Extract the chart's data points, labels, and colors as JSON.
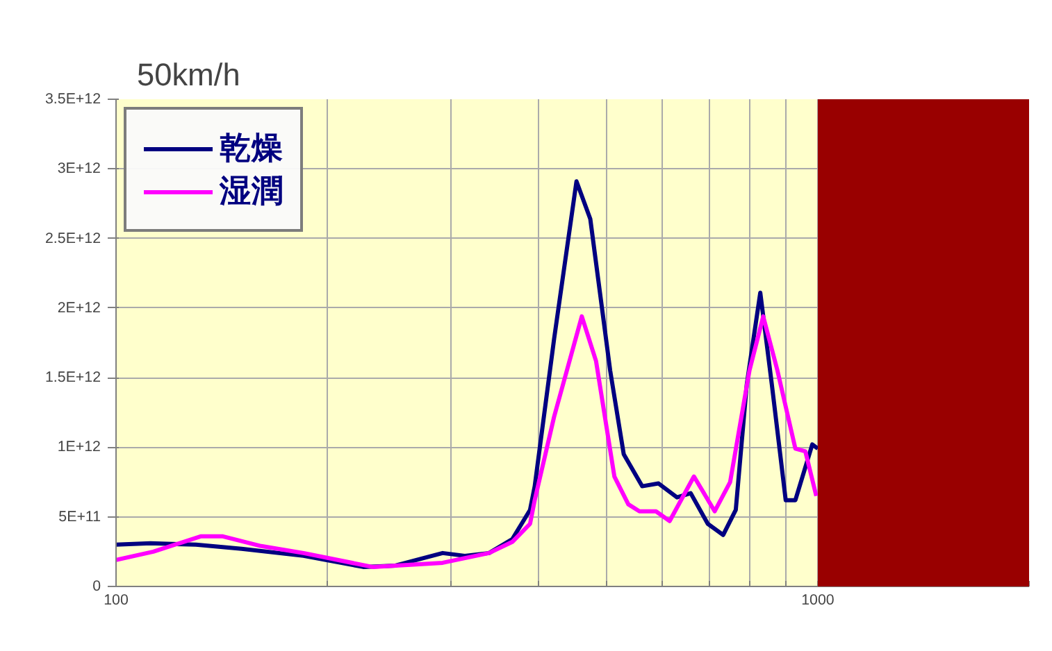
{
  "chart_data": {
    "type": "line",
    "title": "50km/h",
    "log": "x",
    "xlim": [
      100,
      2000
    ],
    "ylim": [
      0,
      3500000000000.0
    ],
    "xticks": [
      100,
      {
        "value": 200,
        "label": null
      },
      {
        "value": 300,
        "label": null
      },
      {
        "value": 400,
        "label": null
      },
      {
        "value": 500,
        "label": null
      },
      {
        "value": 600,
        "label": null
      },
      {
        "value": 700,
        "label": null
      },
      {
        "value": 800,
        "label": null
      },
      {
        "value": 900,
        "label": null
      },
      1000,
      {
        "value": 2000,
        "label": null
      }
    ],
    "yticks": [
      0,
      {
        "value": 500000000000.0,
        "label": "5E+11"
      },
      {
        "value": 1000000000000.0,
        "label": "1E+12"
      },
      {
        "value": 1500000000000.0,
        "label": "1.5E+12"
      },
      {
        "value": 2000000000000.0,
        "label": "2E+12"
      },
      {
        "value": 2500000000000.0,
        "label": "2.5E+12"
      },
      {
        "value": 3000000000000.0,
        "label": "3E+12"
      },
      {
        "value": 3500000000000.0,
        "label": "3.5E+12"
      }
    ],
    "grid": true,
    "legend": "top left",
    "line_style": "solid",
    "marker": "none",
    "bands": [
      {
        "axis": "x",
        "from": 1000,
        "to": 2000,
        "color": "#990000"
      }
    ],
    "series": [
      {
        "name": "乾燥",
        "color": "#000080",
        "x": [
          100,
          112,
          130,
          151,
          185,
          225,
          250,
          292,
          314,
          340,
          367,
          389,
          395,
          421,
          453,
          474,
          506,
          529,
          562,
          593,
          630,
          659,
          697,
          733,
          764,
          792,
          828,
          860,
          900,
          929,
          982,
          1000
        ],
        "values": [
          300000000000.0,
          310000000000.0,
          300000000000.0,
          270000000000.0,
          220000000000.0,
          140000000000.0,
          150000000000.0,
          240000000000.0,
          220000000000.0,
          240000000000.0,
          340000000000.0,
          550000000000.0,
          720000000000.0,
          1780000000000.0,
          2910000000000.0,
          2640000000000.0,
          1550000000000.0,
          950000000000.0,
          720000000000.0,
          740000000000.0,
          640000000000.0,
          670000000000.0,
          450000000000.0,
          370000000000.0,
          550000000000.0,
          1450000000000.0,
          2110000000000.0,
          1450000000000.0,
          620000000000.0,
          620000000000.0,
          1020000000000.0,
          990000000000.0
        ]
      },
      {
        "name": "湿潤",
        "color": "#ff00ff",
        "x": [
          100,
          113,
          132,
          142,
          161,
          185,
          232,
          292,
          340,
          367,
          389,
          395,
          421,
          461,
          483,
          513,
          537,
          557,
          588,
          615,
          666,
          713,
          750,
          799,
          836,
          876,
          929,
          960,
          995
        ],
        "values": [
          190000000000.0,
          250000000000.0,
          360000000000.0,
          360000000000.0,
          290000000000.0,
          240000000000.0,
          140000000000.0,
          170000000000.0,
          240000000000.0,
          320000000000.0,
          450000000000.0,
          620000000000.0,
          1220000000000.0,
          1940000000000.0,
          1620000000000.0,
          790000000000.0,
          590000000000.0,
          540000000000.0,
          540000000000.0,
          470000000000.0,
          790000000000.0,
          540000000000.0,
          750000000000.0,
          1550000000000.0,
          1940000000000.0,
          1550000000000.0,
          990000000000.0,
          970000000000.0,
          650000000000.0
        ]
      }
    ]
  }
}
